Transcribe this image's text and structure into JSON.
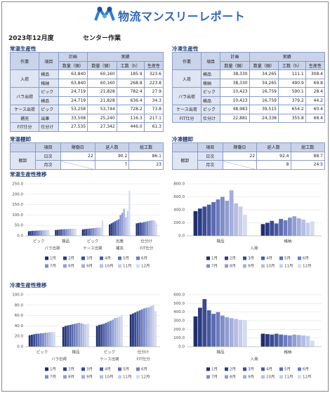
{
  "header": {
    "title": "物流マンスリーレポート",
    "period": "2023年12月度",
    "section": "センター作業"
  },
  "ambient_productivity": {
    "title": "常温生産性",
    "header": {
      "work": "作業",
      "item": "項目",
      "plan": "計画",
      "actual": "実績",
      "qty_plan": "数量（個）",
      "qty_actual": "数量（個）",
      "hours": "工数（h）",
      "productivity": "生産性"
    },
    "rows": [
      {
        "work": "入荷",
        "items": [
          [
            "検品",
            "63,840",
            "60,160",
            "185.9",
            "323.6"
          ],
          [
            "格納",
            "63,840",
            "60,160",
            "268.8",
            "223.8"
          ]
        ]
      },
      {
        "work": "バラ出荷",
        "items": [
          [
            "ピック",
            "24,719",
            "21,828",
            "782.4",
            "27.9"
          ],
          [
            "検品",
            "24,719",
            "21,828",
            "636.4",
            "34.3"
          ]
        ]
      },
      {
        "work": "ケース出荷",
        "items": [
          [
            "ピック",
            "53,258",
            "53,744",
            "728.2",
            "73.8"
          ]
        ]
      },
      {
        "work": "補充",
        "items": [
          [
            "出庫",
            "33,508",
            "25,240",
            "116.3",
            "217.1"
          ]
        ]
      },
      {
        "work": "FIT仕分",
        "items": [
          [
            "仕分け",
            "27,535",
            "27,342",
            "446.0",
            "61.3"
          ]
        ]
      }
    ]
  },
  "frozen_productivity": {
    "title": "冷凍生産性",
    "header": {
      "work": "作業",
      "item": "項目",
      "plan": "計画",
      "actual": "実績",
      "qty_plan": "数量（個）",
      "qty_actual": "数量（個）",
      "hours": "工数（h）",
      "productivity": "生産性"
    },
    "rows": [
      {
        "work": "入荷",
        "items": [
          [
            "検品",
            "38,330",
            "34,265",
            "111.1",
            "308.4"
          ],
          [
            "格納",
            "38,330",
            "34,265",
            "490.9",
            "69.8"
          ]
        ]
      },
      {
        "work": "バラ出荷",
        "items": [
          [
            "ピック",
            "10,423",
            "16,759",
            "590.1",
            "28.4"
          ],
          [
            "検品",
            "10,423",
            "16,759",
            "379.2",
            "44.2"
          ]
        ]
      },
      {
        "work": "ケース出荷",
        "items": [
          [
            "ピック",
            "48,983",
            "39,515",
            "654.2",
            "60.4"
          ]
        ]
      },
      {
        "work": "FIT仕分",
        "items": [
          [
            "仕分け",
            "22,881",
            "24,338",
            "355.8",
            "68.4"
          ]
        ]
      }
    ]
  },
  "ambient_stocktake": {
    "title": "常温棚卸",
    "header": [
      "項目",
      "稼働日",
      "延人数",
      "総工数"
    ],
    "label": "棚卸",
    "rows": [
      [
        "日次",
        "22",
        "90.2",
        "86.1"
      ],
      [
        "月次",
        null,
        "7",
        "23"
      ]
    ]
  },
  "frozen_stocktake": {
    "title": "冷凍棚卸",
    "header": [
      "項目",
      "稼働日",
      "延人数",
      "総工数"
    ],
    "label": "棚卸",
    "rows": [
      [
        "日次",
        "22",
        "92.4",
        "88.7"
      ],
      [
        "月次",
        null,
        "8",
        "24.5"
      ]
    ]
  },
  "charts": [
    {
      "type": "bar",
      "title": "常温生産性推移",
      "groups": [
        {
          "name": "バラ出荷",
          "categories": [
            "ピック",
            "検品"
          ]
        },
        {
          "name": "ケース出荷",
          "categories": [
            "ピック"
          ]
        },
        {
          "name": "補充",
          "categories": [
            "出庫"
          ]
        },
        {
          "name": "FIT仕分",
          "categories": [
            "仕分け"
          ]
        }
      ],
      "ylim": [
        0,
        250
      ],
      "yticks": [
        {
          "value": 0,
          "label": "0.0"
        },
        {
          "value": 50,
          "label": "50.0"
        },
        {
          "value": 100,
          "label": "100.0"
        },
        {
          "value": 150,
          "label": "150.0"
        },
        {
          "value": 200,
          "label": "200.0"
        },
        {
          "value": 250,
          "label": "250.0"
        }
      ],
      "series": [
        {
          "name": "1月",
          "color": "#1f2d6b",
          "values": [
            22,
            28,
            30,
            55,
            60
          ]
        },
        {
          "name": "2月",
          "color": "#2c3c80",
          "values": [
            23,
            29,
            32,
            60,
            62
          ]
        },
        {
          "name": "3月",
          "color": "#3a4b93",
          "values": [
            24,
            30,
            33,
            65,
            64
          ]
        },
        {
          "name": "4月",
          "color": "#4a5aa3",
          "values": [
            24,
            31,
            34,
            70,
            63
          ]
        },
        {
          "name": "5月",
          "color": "#5b6bb1",
          "values": [
            25,
            31,
            35,
            75,
            66
          ]
        },
        {
          "name": "6月",
          "color": "#6d7cbd",
          "values": [
            25,
            32,
            36,
            80,
            68
          ]
        },
        {
          "name": "7月",
          "color": "#7f8dc7",
          "values": [
            26,
            32,
            37,
            100,
            70
          ]
        },
        {
          "name": "8月",
          "color": "#919ed1",
          "values": [
            26,
            33,
            38,
            110,
            72
          ]
        },
        {
          "name": "9月",
          "color": "#a3aeda",
          "values": [
            27,
            33,
            39,
            130,
            74
          ]
        },
        {
          "name": "10月",
          "color": "#b4bee2",
          "values": [
            27,
            34,
            40,
            90,
            75
          ]
        },
        {
          "name": "11月",
          "color": "#c5cde9",
          "values": [
            28,
            34,
            40,
            120,
            73
          ]
        },
        {
          "name": "12月",
          "color": "#d5dbf0",
          "values": [
            27.9,
            34.3,
            73.8,
            217.1,
            61.3
          ]
        }
      ]
    },
    {
      "type": "bar",
      "groups": [
        {
          "name": "入荷",
          "categories": [
            "検品",
            "格納"
          ]
        }
      ],
      "ylim": [
        0,
        800
      ],
      "yticks": [
        {
          "value": 0,
          "label": "0.0"
        },
        {
          "value": 200,
          "label": "200.0"
        },
        {
          "value": 400,
          "label": "400.0"
        },
        {
          "value": 600,
          "label": "600.0"
        },
        {
          "value": 800,
          "label": "800.0"
        }
      ],
      "series": [
        {
          "name": "1月",
          "color": "#1f2d6b",
          "values": [
            380,
            180
          ]
        },
        {
          "name": "2月",
          "color": "#2c3c80",
          "values": [
            420,
            200
          ]
        },
        {
          "name": "3月",
          "color": "#3a4b93",
          "values": [
            450,
            230
          ]
        },
        {
          "name": "4月",
          "color": "#4a5aa3",
          "values": [
            480,
            190
          ]
        },
        {
          "name": "5月",
          "color": "#5b6bb1",
          "values": [
            520,
            260
          ]
        },
        {
          "name": "6月",
          "color": "#6d7cbd",
          "values": [
            560,
            240
          ]
        },
        {
          "name": "7月",
          "color": "#7f8dc7",
          "values": [
            600,
            280
          ]
        },
        {
          "name": "8月",
          "color": "#919ed1",
          "values": [
            540,
            300
          ]
        },
        {
          "name": "9月",
          "color": "#a3aeda",
          "values": [
            700,
            270
          ]
        },
        {
          "name": "10月",
          "color": "#b4bee2",
          "values": [
            500,
            250
          ]
        },
        {
          "name": "11月",
          "color": "#c5cde9",
          "values": [
            450,
            200
          ]
        },
        {
          "name": "12月",
          "color": "#d5dbf0",
          "values": [
            323.6,
            223.8
          ]
        }
      ]
    },
    {
      "type": "bar",
      "title": "冷凍生産性推移",
      "groups": [
        {
          "name": "バラ出荷",
          "categories": [
            "ピック",
            "検品"
          ]
        },
        {
          "name": "ケース出荷",
          "categories": [
            "ピック"
          ]
        },
        {
          "name": "FIT仕分",
          "categories": [
            "仕分け"
          ]
        }
      ],
      "ylim": [
        0,
        100
      ],
      "yticks": [
        {
          "value": 0,
          "label": "0.0"
        },
        {
          "value": 20,
          "label": "20.0"
        },
        {
          "value": 40,
          "label": "40.0"
        },
        {
          "value": 60,
          "label": "60.0"
        },
        {
          "value": 80,
          "label": "80.0"
        },
        {
          "value": 100,
          "label": "100.0"
        }
      ],
      "series": [
        {
          "name": "1月",
          "color": "#1f2d6b",
          "values": [
            22,
            38,
            40,
            62
          ]
        },
        {
          "name": "2月",
          "color": "#2c3c80",
          "values": [
            23,
            40,
            42,
            64
          ]
        },
        {
          "name": "3月",
          "color": "#3a4b93",
          "values": [
            24,
            41,
            43,
            66
          ]
        },
        {
          "name": "4月",
          "color": "#4a5aa3",
          "values": [
            25,
            42,
            44,
            68
          ]
        },
        {
          "name": "5月",
          "color": "#5b6bb1",
          "values": [
            25,
            43,
            46,
            70
          ]
        },
        {
          "name": "6月",
          "color": "#6d7cbd",
          "values": [
            26,
            44,
            48,
            72
          ]
        },
        {
          "name": "7月",
          "color": "#7f8dc7",
          "values": [
            26,
            45,
            50,
            74
          ]
        },
        {
          "name": "8月",
          "color": "#919ed1",
          "values": [
            27,
            46,
            52,
            75
          ]
        },
        {
          "name": "9月",
          "color": "#a3aeda",
          "values": [
            27,
            45,
            55,
            76
          ]
        },
        {
          "name": "10月",
          "color": "#b4bee2",
          "values": [
            28,
            44,
            56,
            78
          ]
        },
        {
          "name": "11月",
          "color": "#c5cde9",
          "values": [
            28,
            43,
            58,
            80
          ]
        },
        {
          "name": "12月",
          "color": "#d5dbf0",
          "values": [
            28.4,
            44.2,
            60.4,
            68.4
          ]
        }
      ]
    },
    {
      "type": "bar",
      "groups": [
        {
          "name": "入荷",
          "categories": [
            "検品",
            "格納"
          ]
        }
      ],
      "ylim": [
        0,
        600
      ],
      "yticks": [
        {
          "value": 0,
          "label": "0.0"
        },
        {
          "value": 100,
          "label": "100.0"
        },
        {
          "value": 200,
          "label": "200.0"
        },
        {
          "value": 300,
          "label": "300.0"
        },
        {
          "value": 400,
          "label": "400.0"
        },
        {
          "value": 500,
          "label": "500.0"
        },
        {
          "value": 600,
          "label": "600.0"
        }
      ],
      "series": [
        {
          "name": "1月",
          "color": "#1f2d6b",
          "values": [
            350,
            150
          ]
        },
        {
          "name": "2月",
          "color": "#2c3c80",
          "values": [
            450,
            145
          ]
        },
        {
          "name": "3月",
          "color": "#3a4b93",
          "values": [
            550,
            140
          ]
        },
        {
          "name": "4月",
          "color": "#4a5aa3",
          "values": [
            420,
            150
          ]
        },
        {
          "name": "5月",
          "color": "#5b6bb1",
          "values": [
            380,
            140
          ]
        },
        {
          "name": "6月",
          "color": "#6d7cbd",
          "values": [
            400,
            135
          ]
        },
        {
          "name": "7月",
          "color": "#7f8dc7",
          "values": [
            360,
            130
          ]
        },
        {
          "name": "8月",
          "color": "#919ed1",
          "values": [
            340,
            140
          ]
        },
        {
          "name": "9月",
          "color": "#a3aeda",
          "values": [
            330,
            135
          ]
        },
        {
          "name": "10月",
          "color": "#b4bee2",
          "values": [
            320,
            130
          ]
        },
        {
          "name": "11月",
          "color": "#c5cde9",
          "values": [
            310,
            125
          ]
        },
        {
          "name": "12月",
          "color": "#d5dbf0",
          "values": [
            308.4,
            69.8
          ]
        }
      ]
    }
  ]
}
